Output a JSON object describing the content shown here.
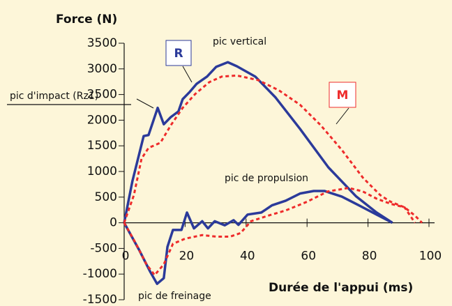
{
  "chart_data": {
    "type": "line",
    "y_label": "Force (N)",
    "x_label": "Durée de l'appui (ms)",
    "xlim": [
      0,
      100
    ],
    "xticks": [
      0,
      20,
      40,
      60,
      80,
      100
    ],
    "ylim": [
      -1500,
      3500
    ],
    "yticks": [
      -1500,
      -1000,
      -500,
      0,
      500,
      1000,
      1500,
      2000,
      2500,
      3000,
      3500
    ],
    "annotations": [
      "pic vertical",
      "pic d'impact (Rz1)",
      "pic de propulsion",
      "pic de freinage"
    ],
    "series": [
      {
        "name": "R",
        "color": "#2b3a9a",
        "dash": false,
        "x": [
          0,
          2.7,
          6.4,
          8,
          11,
          13,
          15.3,
          17.8,
          19.2,
          21.5,
          23.8,
          27.2,
          30.2,
          34,
          37,
          43,
          49.7,
          57.7,
          67,
          76,
          82.8,
          88
        ],
        "values": [
          0,
          810,
          1690,
          1710,
          2240,
          1920,
          2060,
          2170,
          2410,
          2550,
          2710,
          2850,
          3040,
          3130,
          3050,
          2850,
          2440,
          1830,
          1080,
          520,
          200,
          0
        ]
      },
      {
        "name": "M",
        "color": "#ee2b2b",
        "dash": true,
        "x": [
          0,
          3.2,
          5.7,
          8,
          11.9,
          15.3,
          19.2,
          23.3,
          27.9,
          32,
          37,
          44,
          50.8,
          57.7,
          64.5,
          71.4,
          78.3,
          84,
          87.4,
          92,
          95.4,
          97.7
        ],
        "values": [
          0,
          540,
          1250,
          1460,
          1560,
          1900,
          2240,
          2510,
          2740,
          2850,
          2870,
          2780,
          2580,
          2300,
          1900,
          1420,
          880,
          540,
          410,
          300,
          140,
          0
        ]
      },
      {
        "color": "#2b3a9a",
        "dash": false,
        "x": [
          0,
          5,
          8.5,
          10.8,
          13,
          14.2,
          16,
          18.8,
          20.6,
          22.9,
          25.6,
          27.5,
          29.7,
          33,
          35.9,
          37.5,
          40.5,
          45,
          48.5,
          53,
          57.7,
          62.2,
          65.7,
          71.4,
          77,
          82.8,
          88
        ],
        "values": [
          0,
          -540,
          -950,
          -1190,
          -1080,
          -470,
          -140,
          -140,
          200,
          -110,
          30,
          -110,
          30,
          -50,
          50,
          -40,
          160,
          200,
          340,
          430,
          570,
          620,
          620,
          510,
          340,
          160,
          0
        ]
      },
      {
        "color": "#ee2b2b",
        "dash": true,
        "x": [
          0,
          3.9,
          7.3,
          10,
          13,
          16,
          20,
          25.6,
          30.2,
          34.8,
          38.2,
          41.6,
          47.3,
          53,
          60,
          66.8,
          73.7,
          78.3,
          82.8,
          87.4,
          92,
          95.4
        ],
        "values": [
          0,
          -410,
          -810,
          -1020,
          -810,
          -410,
          -310,
          -240,
          -270,
          -270,
          -200,
          30,
          140,
          240,
          410,
          610,
          680,
          610,
          470,
          370,
          300,
          0
        ]
      }
    ]
  }
}
